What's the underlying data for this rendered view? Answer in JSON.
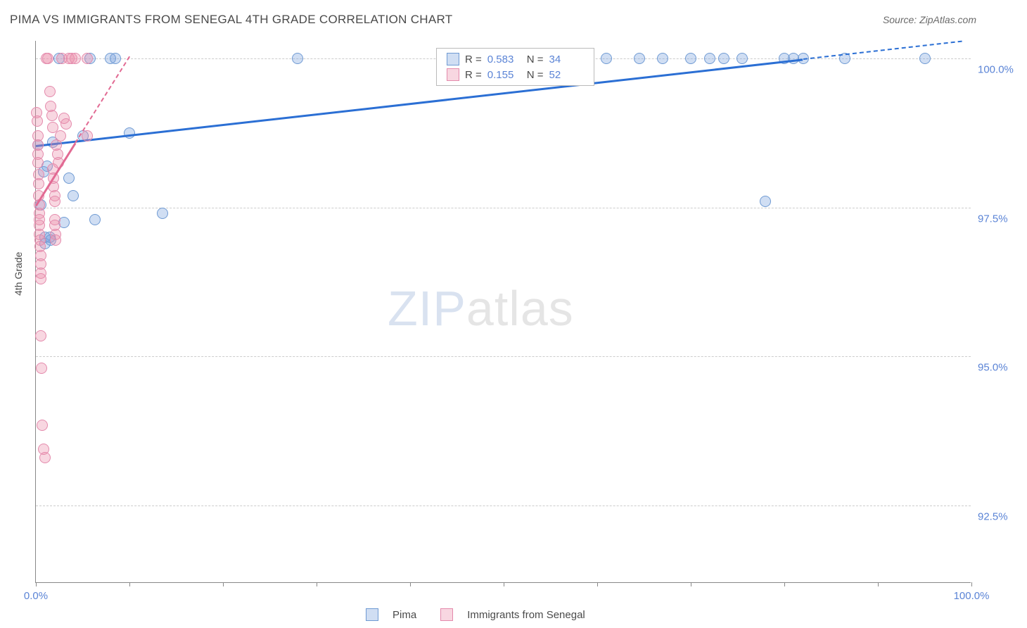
{
  "title": "PIMA VS IMMIGRANTS FROM SENEGAL 4TH GRADE CORRELATION CHART",
  "source": "Source: ZipAtlas.com",
  "ylabel": "4th Grade",
  "watermark": {
    "part1": "ZIP",
    "part2": "atlas"
  },
  "chart": {
    "type": "scatter",
    "xlim": [
      0,
      100
    ],
    "ylim": [
      91.2,
      100.3
    ],
    "x_ticks": [
      0,
      10,
      20,
      30,
      40,
      50,
      60,
      70,
      80,
      90,
      100
    ],
    "x_tick_labels": {
      "0": "0.0%",
      "100": "100.0%"
    },
    "y_gridlines": [
      92.5,
      95.0,
      97.5,
      100.0
    ],
    "y_tick_labels": {
      "92.5": "92.5%",
      "95.0": "95.0%",
      "97.5": "97.5%",
      "100.0": "100.0%"
    },
    "background_color": "#ffffff",
    "grid_color": "#cccccc",
    "axis_color": "#888888",
    "tick_label_color": "#5b84d6",
    "point_radius": 8,
    "series": [
      {
        "name": "Pima",
        "fill": "rgba(120,160,220,0.35)",
        "stroke": "#6f9ad3",
        "trend_color": "#2b6fd4",
        "R": "0.583",
        "N": "34",
        "trend": {
          "x1": 0,
          "y1": 98.55,
          "x2": 82,
          "y2": 100.0,
          "dash_to_x": 100
        },
        "points": [
          [
            0.2,
            98.55
          ],
          [
            0.5,
            97.55
          ],
          [
            0.8,
            98.1
          ],
          [
            1.0,
            97.0
          ],
          [
            1.0,
            96.9
          ],
          [
            1.2,
            98.2
          ],
          [
            1.5,
            97.0
          ],
          [
            1.6,
            96.95
          ],
          [
            1.8,
            98.6
          ],
          [
            2.5,
            100.0
          ],
          [
            3.0,
            97.25
          ],
          [
            3.5,
            98.0
          ],
          [
            4.0,
            97.7
          ],
          [
            5.0,
            98.7
          ],
          [
            5.8,
            100.0
          ],
          [
            6.3,
            97.3
          ],
          [
            8.0,
            100.0
          ],
          [
            8.5,
            100.0
          ],
          [
            10.0,
            98.75
          ],
          [
            13.5,
            97.4
          ],
          [
            28.0,
            100.0
          ],
          [
            61.0,
            100.0
          ],
          [
            64.5,
            100.0
          ],
          [
            67.0,
            100.0
          ],
          [
            70.0,
            100.0
          ],
          [
            72.0,
            100.0
          ],
          [
            73.5,
            100.0
          ],
          [
            75.5,
            100.0
          ],
          [
            78.0,
            97.6
          ],
          [
            80.0,
            100.0
          ],
          [
            81.0,
            100.0
          ],
          [
            82.0,
            100.0
          ],
          [
            86.5,
            100.0
          ],
          [
            95.0,
            100.0
          ]
        ]
      },
      {
        "name": "Immigrants from Senegal",
        "fill": "rgba(235,140,170,0.35)",
        "stroke": "#e48aac",
        "trend_color": "#e26a93",
        "R": "0.155",
        "N": "52",
        "trend": {
          "x1": 0,
          "y1": 97.55,
          "x2": 4.2,
          "y2": 98.6,
          "dash_to_x": 10
        },
        "points": [
          [
            0.1,
            99.1
          ],
          [
            0.15,
            98.95
          ],
          [
            0.2,
            98.7
          ],
          [
            0.2,
            98.55
          ],
          [
            0.25,
            98.4
          ],
          [
            0.25,
            98.25
          ],
          [
            0.3,
            98.05
          ],
          [
            0.3,
            97.9
          ],
          [
            0.3,
            97.7
          ],
          [
            0.35,
            97.55
          ],
          [
            0.35,
            97.4
          ],
          [
            0.4,
            97.3
          ],
          [
            0.4,
            97.2
          ],
          [
            0.4,
            97.05
          ],
          [
            0.45,
            96.95
          ],
          [
            0.45,
            96.85
          ],
          [
            0.5,
            96.7
          ],
          [
            0.5,
            96.55
          ],
          [
            0.5,
            96.4
          ],
          [
            0.5,
            96.3
          ],
          [
            0.55,
            95.35
          ],
          [
            0.6,
            94.8
          ],
          [
            0.7,
            93.85
          ],
          [
            0.8,
            93.45
          ],
          [
            1.0,
            93.3
          ],
          [
            1.1,
            100.0
          ],
          [
            1.3,
            100.0
          ],
          [
            1.5,
            99.45
          ],
          [
            1.6,
            99.2
          ],
          [
            1.7,
            99.05
          ],
          [
            1.8,
            98.85
          ],
          [
            1.8,
            98.15
          ],
          [
            1.85,
            98.0
          ],
          [
            1.9,
            97.85
          ],
          [
            2.0,
            97.7
          ],
          [
            2.0,
            97.6
          ],
          [
            2.0,
            97.3
          ],
          [
            2.05,
            97.2
          ],
          [
            2.1,
            97.05
          ],
          [
            2.1,
            96.95
          ],
          [
            2.2,
            98.55
          ],
          [
            2.3,
            98.4
          ],
          [
            2.4,
            98.25
          ],
          [
            2.6,
            98.7
          ],
          [
            2.8,
            100.0
          ],
          [
            3.0,
            99.0
          ],
          [
            3.2,
            98.9
          ],
          [
            3.5,
            100.0
          ],
          [
            3.8,
            100.0
          ],
          [
            4.2,
            100.0
          ],
          [
            5.5,
            98.7
          ],
          [
            5.5,
            100.0
          ]
        ]
      }
    ]
  },
  "legend": {
    "top_box": {
      "rows": [
        {
          "swatch_fill": "rgba(120,160,220,0.35)",
          "swatch_stroke": "#6f9ad3",
          "r_label": "R =",
          "r_val": "0.583",
          "n_label": "N =",
          "n_val": "34"
        },
        {
          "swatch_fill": "rgba(235,140,170,0.35)",
          "swatch_stroke": "#e48aac",
          "r_label": "R =",
          "r_val": "0.155",
          "n_label": "N =",
          "n_val": "52"
        }
      ]
    },
    "bottom": [
      {
        "swatch_fill": "rgba(120,160,220,0.35)",
        "swatch_stroke": "#6f9ad3",
        "label": "Pima"
      },
      {
        "swatch_fill": "rgba(235,140,170,0.35)",
        "swatch_stroke": "#e48aac",
        "label": "Immigrants from Senegal"
      }
    ]
  }
}
